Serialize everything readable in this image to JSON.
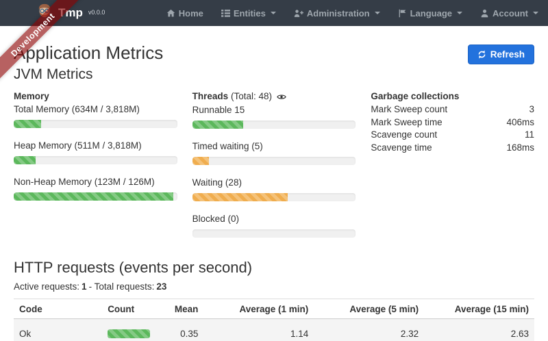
{
  "brand": {
    "name": "Tmp",
    "version": "v0.0.0",
    "ribbon": "Development"
  },
  "navbar": {
    "items": [
      {
        "label": "Home",
        "icon": "home-icon",
        "dropdown": false
      },
      {
        "label": "Entities",
        "icon": "list-icon",
        "dropdown": true
      },
      {
        "label": "Administration",
        "icon": "user-plus-icon",
        "dropdown": true
      },
      {
        "label": "Language",
        "icon": "flag-icon",
        "dropdown": true
      },
      {
        "label": "Account",
        "icon": "user-icon",
        "dropdown": true
      }
    ]
  },
  "page": {
    "title": "Application Metrics",
    "jvm_title": "JVM Metrics",
    "refresh_label": "Refresh"
  },
  "memory": {
    "title": "Memory",
    "metrics": [
      {
        "label": "Total Memory (634M / 3,818M)",
        "percent": 16.6,
        "color": "green"
      },
      {
        "label": "Heap Memory (511M / 3,818M)",
        "percent": 13.4,
        "color": "green"
      },
      {
        "label": "Non-Heap Memory (123M / 126M)",
        "percent": 97.6,
        "color": "green"
      }
    ]
  },
  "threads": {
    "title": "Threads",
    "total_label": "(Total: 48)",
    "metrics": [
      {
        "label": "Runnable 15",
        "percent": 31.3,
        "color": "green"
      },
      {
        "label": "Timed waiting (5)",
        "percent": 10.4,
        "color": "orange"
      },
      {
        "label": "Waiting (28)",
        "percent": 58.3,
        "color": "orange"
      },
      {
        "label": "Blocked (0)",
        "percent": 0,
        "color": "orange"
      }
    ]
  },
  "garbage_collections": {
    "title": "Garbage collections",
    "rows": [
      {
        "label": "Mark Sweep count",
        "value": "3"
      },
      {
        "label": "Mark Sweep time",
        "value": "406ms"
      },
      {
        "label": "Scavenge count",
        "value": "11"
      },
      {
        "label": "Scavenge time",
        "value": "168ms"
      }
    ]
  },
  "http_requests": {
    "title": "HTTP requests (events per second)",
    "active_label": "Active requests:",
    "active_value": "1",
    "separator": "- Total requests:",
    "total_value": "23",
    "table": {
      "headers": [
        "Code",
        "Count",
        "Mean",
        "Average (1 min)",
        "Average (5 min)",
        "Average (15 min)"
      ],
      "rows": [
        {
          "code": "Ok",
          "count_bar": {
            "percent": 100,
            "color": "green"
          },
          "mean": "0.35",
          "avg_1min": "1.14",
          "avg_5min": "2.32",
          "avg_15min": "2.63"
        }
      ]
    }
  },
  "colors": {
    "green": "#5cb85c",
    "orange": "#f0ad4e",
    "primary_button": "#2372dd",
    "navbar_bg": "#353d47",
    "ribbon_red": "rgba(139,0,0,0.62)"
  }
}
